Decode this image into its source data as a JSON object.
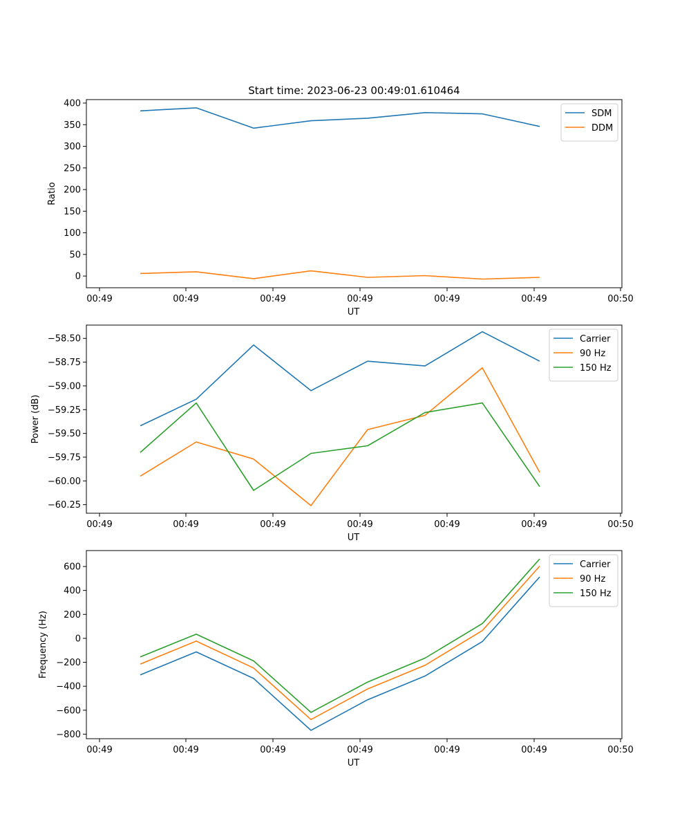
{
  "colors": {
    "blue": "#1f77b4",
    "orange": "#ff7f0e",
    "green": "#2ca02c"
  },
  "chart_data": [
    {
      "type": "line",
      "title": "Start time: 2023-06-23 00:49:01.610464",
      "xlabel": "UT",
      "ylabel": "Ratio",
      "x_tick_labels": [
        "00:49",
        "00:49",
        "00:49",
        "00:49",
        "00:49",
        "00:49",
        "00:49",
        "00:50"
      ],
      "y_ticks": [
        0,
        50,
        100,
        150,
        200,
        250,
        300,
        350,
        400
      ],
      "ylim": [
        -27,
        408
      ],
      "grid": false,
      "legend_placement": "top-right",
      "series": [
        {
          "name": "SDM",
          "color": "#1f77b4",
          "values": [
            382,
            389,
            342,
            359,
            365,
            378,
            375,
            346
          ]
        },
        {
          "name": "DDM",
          "color": "#ff7f0e",
          "values": [
            6,
            10,
            -6,
            12,
            -3,
            1,
            -7,
            -3
          ]
        }
      ]
    },
    {
      "type": "line",
      "title": "",
      "xlabel": "UT",
      "ylabel": "Power (dB)",
      "x_tick_labels": [
        "00:49",
        "00:49",
        "00:49",
        "00:49",
        "00:49",
        "00:49",
        "00:49",
        "00:50"
      ],
      "y_ticks": [
        -60.25,
        -60.0,
        -59.75,
        -59.5,
        -59.25,
        -59.0,
        -58.75,
        -58.5
      ],
      "y_tick_labels": [
        "−60.25",
        "−60.00",
        "−59.75",
        "−59.50",
        "−59.25",
        "−59.00",
        "−58.75",
        "−58.50"
      ],
      "ylim": [
        -60.34,
        -58.36
      ],
      "grid": false,
      "legend_placement": "top-right",
      "series": [
        {
          "name": "Carrier",
          "color": "#1f77b4",
          "values": [
            -59.42,
            -59.14,
            -58.57,
            -59.05,
            -58.74,
            -58.79,
            -58.43,
            -58.74
          ]
        },
        {
          "name": "90 Hz",
          "color": "#ff7f0e",
          "values": [
            -59.95,
            -59.59,
            -59.77,
            -60.26,
            -59.46,
            -59.31,
            -58.81,
            -59.91
          ]
        },
        {
          "name": "150 Hz",
          "color": "#2ca02c",
          "values": [
            -59.7,
            -59.18,
            -60.1,
            -59.71,
            -59.63,
            -59.28,
            -59.18,
            -60.06
          ]
        }
      ]
    },
    {
      "type": "line",
      "title": "",
      "xlabel": "UT",
      "ylabel": "Frequency (Hz)",
      "x_tick_labels": [
        "00:49",
        "00:49",
        "00:49",
        "00:49",
        "00:49",
        "00:49",
        "00:49",
        "00:50"
      ],
      "y_ticks": [
        -800,
        -600,
        -400,
        -200,
        0,
        200,
        400,
        600
      ],
      "y_tick_labels": [
        "−800",
        "−600",
        "−400",
        "−200",
        "0",
        "200",
        "400",
        "600"
      ],
      "ylim": [
        -838,
        733
      ],
      "grid": false,
      "legend_placement": "top-right",
      "series": [
        {
          "name": "Carrier",
          "color": "#1f77b4",
          "values": [
            -305,
            -113,
            -335,
            -768,
            -513,
            -315,
            -27,
            513
          ]
        },
        {
          "name": "90 Hz",
          "color": "#ff7f0e",
          "values": [
            -215,
            -23,
            -248,
            -678,
            -423,
            -225,
            65,
            603
          ]
        },
        {
          "name": "150 Hz",
          "color": "#2ca02c",
          "values": [
            -155,
            35,
            -188,
            -618,
            -365,
            -165,
            123,
            663
          ]
        }
      ]
    }
  ]
}
